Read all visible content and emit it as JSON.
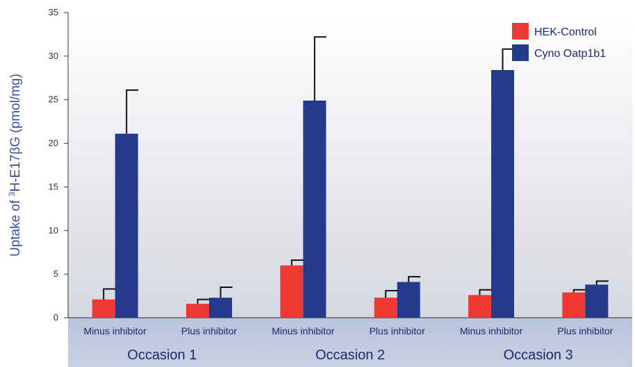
{
  "chart_data": {
    "type": "bar",
    "ylabel_pre": "Uptake of ",
    "ylabel_sup": "3",
    "ylabel_post": "H-E17βG (pmol/mg)",
    "ylim": [
      0,
      35
    ],
    "yticks": [
      "0",
      "5",
      "10",
      "15",
      "20",
      "25",
      "30",
      "35"
    ],
    "grid": false,
    "legend_position": "top-right",
    "groups": [
      "Occasion 1",
      "Occasion 2",
      "Occasion 3"
    ],
    "categories": [
      "Minus inhibitor",
      "Plus inhibitor",
      "Minus inhibitor",
      "Plus inhibitor",
      "Minus inhibitor",
      "Plus inhibitor"
    ],
    "series": [
      {
        "name": "HEK-Control",
        "color": "#ee3833",
        "values": [
          2.1,
          1.6,
          6.0,
          2.3,
          2.6,
          2.9
        ],
        "errors": [
          1.2,
          0.5,
          0.6,
          0.8,
          0.6,
          0.3
        ]
      },
      {
        "name": "Cyno Oatp1b1",
        "color": "#263a8c",
        "values": [
          21.1,
          2.3,
          24.9,
          4.1,
          28.4,
          3.8
        ],
        "errors": [
          5.0,
          1.2,
          7.3,
          0.6,
          2.4,
          0.4
        ]
      }
    ]
  }
}
